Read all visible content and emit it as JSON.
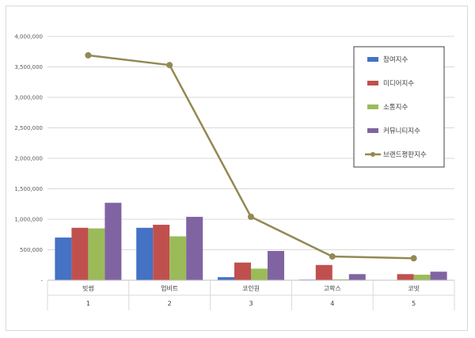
{
  "chart_data": {
    "type": "bar",
    "categories": [
      "빗썸",
      "업비트",
      "코인원",
      "고팍스",
      "코빗"
    ],
    "category_index": [
      "1",
      "2",
      "3",
      "4",
      "5"
    ],
    "series": [
      {
        "name": "참여지수",
        "type": "bar",
        "color": "#4472c4",
        "values": [
          700000,
          860000,
          50000,
          10000,
          5000
        ]
      },
      {
        "name": "미디어지수",
        "type": "bar",
        "color": "#c0504d",
        "values": [
          860000,
          910000,
          290000,
          250000,
          100000
        ]
      },
      {
        "name": "소통지수",
        "type": "bar",
        "color": "#9bbb59",
        "values": [
          850000,
          720000,
          190000,
          15000,
          90000
        ]
      },
      {
        "name": "커뮤니티지수",
        "type": "bar",
        "color": "#8064a2",
        "values": [
          1270000,
          1040000,
          480000,
          100000,
          140000
        ]
      },
      {
        "name": "브랜드평판지수",
        "type": "line",
        "color": "#938953",
        "values": [
          3690000,
          3530000,
          1040000,
          390000,
          360000
        ]
      }
    ],
    "ylim": [
      0,
      4000000
    ],
    "yticks": [
      0,
      500000,
      1000000,
      1500000,
      2000000,
      2500000,
      3000000,
      3500000,
      4000000
    ],
    "ytick_labels": [
      "-",
      "500,000",
      "1,000,000",
      "1,500,000",
      "2,000,000",
      "2,500,000",
      "3,000,000",
      "3,500,000",
      "4,000,000"
    ],
    "grid": true,
    "legend_position": "top-right",
    "title": "",
    "xlabel": "",
    "ylabel": ""
  }
}
